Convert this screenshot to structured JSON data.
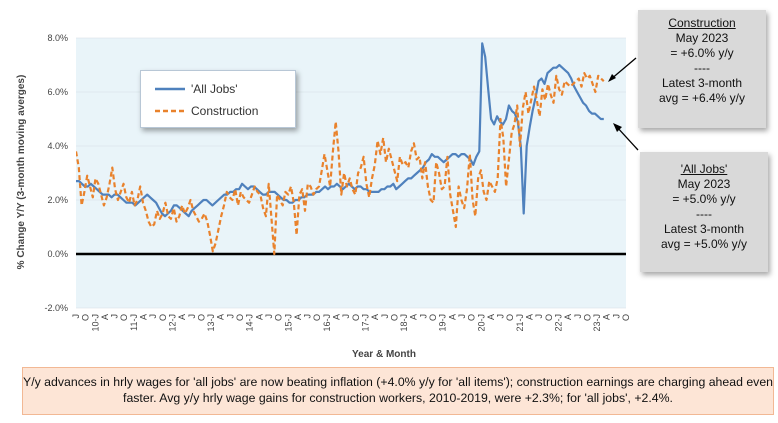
{
  "chart_data": {
    "type": "line",
    "ylabel": "% Change Y/Y (3-month moving averges)",
    "xlabel": "Year & Month",
    "ylim": [
      -2.0,
      8.0
    ],
    "yticks": [
      "-2.0%",
      "0.0%",
      "2.0%",
      "4.0%",
      "6.0%",
      "8.0%"
    ],
    "ytick_values": [
      -2,
      0,
      2,
      4,
      6,
      8
    ],
    "x_start": "2009-07",
    "x_end": "2023-10",
    "x_tick_labels": [
      "J",
      "O",
      "10-J",
      "A",
      "J",
      "O",
      "11-J",
      "A",
      "J",
      "O",
      "12-J",
      "A",
      "J",
      "O",
      "13-J",
      "A",
      "J",
      "O",
      "14-J",
      "A",
      "J",
      "O",
      "15-J",
      "A",
      "J",
      "O",
      "16-J",
      "A",
      "J",
      "O",
      "17-J",
      "A",
      "J",
      "O",
      "18-J",
      "A",
      "J",
      "O",
      "19-J",
      "A",
      "J",
      "O",
      "20-J",
      "A",
      "J",
      "O",
      "21-J",
      "A",
      "J",
      "O",
      "22-J",
      "A",
      "J",
      "O",
      "23-J",
      "A",
      "J",
      "O"
    ],
    "legend": {
      "position": "top-left",
      "items": [
        "'All Jobs'",
        "Construction"
      ]
    },
    "colors": {
      "all_jobs": "#4f81bd",
      "construction": "#e9822c",
      "plot_bg": "#e9f4f9"
    },
    "series": [
      {
        "name": "'All Jobs'",
        "values": [
          2.7,
          2.7,
          2.6,
          2.5,
          2.5,
          2.6,
          2.5,
          2.4,
          2.3,
          2.2,
          2.2,
          2.2,
          2.1,
          2.2,
          2.2,
          2.1,
          2.0,
          1.9,
          1.9,
          1.9,
          1.8,
          1.9,
          2.0,
          2.1,
          2.2,
          2.1,
          2.0,
          1.9,
          1.7,
          1.5,
          1.4,
          1.5,
          1.6,
          1.8,
          1.8,
          1.7,
          1.6,
          1.5,
          1.4,
          1.6,
          1.7,
          1.8,
          1.9,
          2.0,
          2.0,
          1.9,
          1.8,
          1.9,
          2.0,
          2.1,
          2.2,
          2.2,
          2.3,
          2.3,
          2.4,
          2.4,
          2.6,
          2.5,
          2.4,
          2.5,
          2.5,
          2.4,
          2.3,
          2.2,
          2.2,
          2.3,
          2.3,
          2.3,
          2.2,
          2.1,
          2.0,
          2.0,
          1.9,
          1.9,
          2.0,
          2.0,
          2.1,
          2.1,
          2.2,
          2.2,
          2.2,
          2.3,
          2.3,
          2.4,
          2.5,
          2.4,
          2.5,
          2.5,
          2.6,
          2.5,
          2.4,
          2.5,
          2.6,
          2.5,
          2.4,
          2.5,
          2.5,
          2.4,
          2.4,
          2.3,
          2.3,
          2.3,
          2.3,
          2.4,
          2.4,
          2.5,
          2.5,
          2.6,
          2.4,
          2.5,
          2.6,
          2.7,
          2.8,
          2.8,
          2.9,
          3.0,
          3.1,
          3.2,
          3.4,
          3.5,
          3.7,
          3.6,
          3.6,
          3.5,
          3.4,
          3.5,
          3.6,
          3.7,
          3.7,
          3.6,
          3.7,
          3.7,
          3.6,
          3.5,
          3.3,
          3.6,
          3.8,
          7.8,
          7.3,
          6.1,
          5.0,
          4.8,
          5.1,
          4.9,
          4.8,
          5.0,
          5.5,
          5.3,
          5.2,
          4.9,
          4.0,
          1.5,
          4.0,
          4.7,
          5.3,
          5.8,
          6.4,
          6.5,
          6.3,
          6.7,
          6.8,
          6.9,
          6.9,
          7.0,
          6.9,
          6.8,
          6.7,
          6.5,
          6.2,
          6.0,
          5.8,
          5.6,
          5.5,
          5.3,
          5.2,
          5.2,
          5.1,
          5.0,
          5.0
        ]
      },
      {
        "name": "Construction",
        "values": [
          3.8,
          3.2,
          1.8,
          2.3,
          2.9,
          2.5,
          2.1,
          2.8,
          2.6,
          2.2,
          1.8,
          2.1,
          2.6,
          3.2,
          2.4,
          2.0,
          2.3,
          2.6,
          2.1,
          1.9,
          2.3,
          1.8,
          2.0,
          2.5,
          1.9,
          1.6,
          1.2,
          1.0,
          1.1,
          1.6,
          1.3,
          1.5,
          1.9,
          1.4,
          1.3,
          1.7,
          1.2,
          1.4,
          1.8,
          1.5,
          1.7,
          2.0,
          1.6,
          1.4,
          1.2,
          1.3,
          1.5,
          1.2,
          0.7,
          0.1,
          0.4,
          0.9,
          1.4,
          1.8,
          2.3,
          2.1,
          2.0,
          2.4,
          1.8,
          2.3,
          2.1,
          2.0,
          1.9,
          2.2,
          2.5,
          2.3,
          2.2,
          1.7,
          1.4,
          2.6,
          1.3,
          0.0,
          2.2,
          2.0,
          1.8,
          2.3,
          2.2,
          2.5,
          1.9,
          0.7,
          2.2,
          2.4,
          1.6,
          2.6,
          2.5,
          2.2,
          2.4,
          2.5,
          3.1,
          3.7,
          3.1,
          2.5,
          3.8,
          4.9,
          3.8,
          2.2,
          3.0,
          2.5,
          2.8,
          2.4,
          2.2,
          3.0,
          3.2,
          3.6,
          2.6,
          2.1,
          2.8,
          3.3,
          4.2,
          3.7,
          4.3,
          3.4,
          3.9,
          3.5,
          3.1,
          2.7,
          3.6,
          3.3,
          3.4,
          3.2,
          3.8,
          4.1,
          3.5,
          3.6,
          2.8,
          3.4,
          2.5,
          2.0,
          1.9,
          3.4,
          3.0,
          2.4,
          2.5,
          3.6,
          2.2,
          1.6,
          1.0,
          2.5,
          2.0,
          1.7,
          2.4,
          3.7,
          2.0,
          1.4,
          2.8,
          3.1,
          2.3,
          2.0,
          2.7,
          2.5,
          2.3,
          2.8,
          5.0,
          4.3,
          2.5,
          3.5,
          4.5,
          4.8,
          5.5,
          4.0,
          5.4,
          6.0,
          5.2,
          5.7,
          6.2,
          5.7,
          5.1,
          6.1,
          5.7,
          6.3,
          5.9,
          5.6,
          6.6,
          6.1,
          5.9,
          6.4,
          6.3,
          6.2,
          6.3,
          6.4,
          6.5,
          6.2,
          6.7,
          6.5,
          6.6,
          6.3,
          6.0,
          6.6,
          6.5,
          6.4
        ]
      }
    ]
  },
  "legend": {
    "all_jobs": "'All Jobs'",
    "construction": "Construction"
  },
  "callouts": {
    "construction": {
      "title": "Construction",
      "line1": "May 2023",
      "line2": "= +6.0% y/y",
      "sep": "----",
      "line3": "Latest 3-month",
      "line4": "avg = +6.4% y/y"
    },
    "all_jobs": {
      "title": "'All Jobs'",
      "line1": "May 2023",
      "line2": "= +5.0% y/y",
      "sep": "----",
      "line3": "Latest 3-month",
      "line4": "avg = +5.0% y/y"
    }
  },
  "note": {
    "text": "Y/y advances in hrly wages for 'all jobs' are now beating inflation (+4.0% y/y for 'all items'); construction earnings are charging ahead even faster. Avg y/y hrly wage gains for construction workers, 2010-2019, were  +2.3%; for 'all jobs', +2.4%."
  }
}
